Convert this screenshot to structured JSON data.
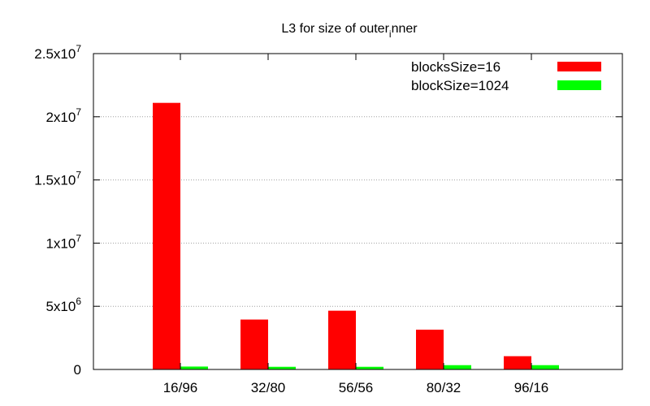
{
  "chart_data": {
    "type": "bar",
    "title": {
      "main": "L3 for size of outer",
      "sub": "i",
      "rest": "nner"
    },
    "categories": [
      "16/96",
      "32/80",
      "56/56",
      "80/32",
      "96/16"
    ],
    "series": [
      {
        "name": "blocksSize=16",
        "color": "#ff0000",
        "values": [
          21100000,
          3950000,
          4650000,
          3150000,
          1050000
        ]
      },
      {
        "name": "blockSize=1024",
        "color": "#00ff00",
        "values": [
          230000,
          210000,
          210000,
          340000,
          340000
        ]
      }
    ],
    "ylim": [
      0,
      25000000
    ],
    "yticks": [
      {
        "value": 0,
        "mant": "0",
        "exp": ""
      },
      {
        "value": 5000000,
        "mant": "5x10",
        "exp": "6"
      },
      {
        "value": 10000000,
        "mant": "1x10",
        "exp": "7"
      },
      {
        "value": 15000000,
        "mant": "1.5x10",
        "exp": "7"
      },
      {
        "value": 20000000,
        "mant": "2x10",
        "exp": "7"
      },
      {
        "value": 25000000,
        "mant": "2.5x10",
        "exp": "7"
      }
    ],
    "grid": true,
    "legend_position": "top-right"
  }
}
